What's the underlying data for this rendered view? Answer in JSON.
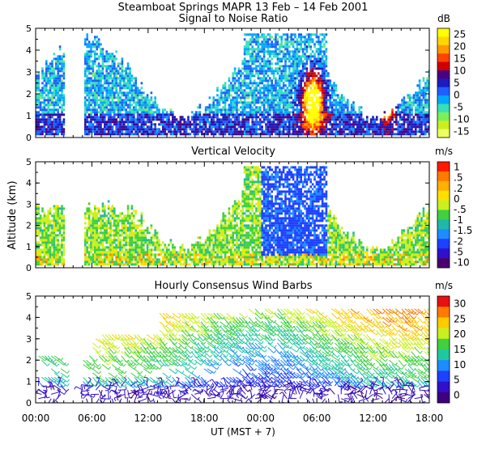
{
  "title": "Steamboat Springs MAPR 13 Feb – 14 Feb 2001",
  "xaxis": {
    "label": "UT  (MST + 7)",
    "ticks": [
      "00:00",
      "06:00",
      "12:00",
      "18:00",
      "00:00",
      "06:00",
      "12:00",
      "18:00"
    ],
    "range_hours": [
      0,
      42
    ]
  },
  "shared_ylabel": "Altitude (km)",
  "chart_data": [
    {
      "type": "heatmap",
      "title": "Signal to Noise Ratio",
      "units": "dB",
      "ylim": [
        0,
        5
      ],
      "yticks": [
        0,
        1,
        2,
        3,
        4,
        5
      ],
      "colorbar": {
        "ticks": [
          "25",
          "20",
          "15",
          "10",
          "5",
          "0",
          "-5",
          "-10",
          "-15"
        ],
        "colors": [
          "#ffff00",
          "#ffd700",
          "#ff9900",
          "#ff4400",
          "#d10000",
          "#4b0082",
          "#1c1cbd",
          "#1e5fff",
          "#00a8ff",
          "#38e0b8",
          "#7aef5a",
          "#c8f020",
          "#f0ff60"
        ]
      }
    },
    {
      "type": "heatmap",
      "title": "Vertical Velocity",
      "units": "m/s",
      "ylim": [
        0,
        5
      ],
      "yticks": [
        0,
        1,
        2,
        3,
        4,
        5
      ],
      "colorbar": {
        "ticks": [
          "1",
          ".5",
          ".2",
          "0",
          "-.5",
          "-1",
          "-1.5",
          "-2",
          "-5",
          "-10"
        ],
        "colors": [
          "#ff1a00",
          "#ff7a00",
          "#ffb000",
          "#ffe000",
          "#c8f020",
          "#40d040",
          "#20b8a8",
          "#1e8cff",
          "#1e40ff",
          "#3010c8",
          "#4b0070"
        ]
      }
    },
    {
      "type": "barbs",
      "title": "Hourly Consensus Wind Barbs",
      "units": "m/s",
      "ylim": [
        0,
        5
      ],
      "yticks": [
        0,
        1,
        2,
        3,
        4,
        5
      ],
      "colorbar": {
        "ticks": [
          "30",
          "25",
          "20",
          "15",
          "10",
          "5",
          "0"
        ],
        "colors": [
          "#e81010",
          "#ff7a00",
          "#ffcc00",
          "#c8f020",
          "#40d040",
          "#20c8a0",
          "#1e8cff",
          "#1e40ff",
          "#3010c8",
          "#400080"
        ]
      }
    }
  ]
}
